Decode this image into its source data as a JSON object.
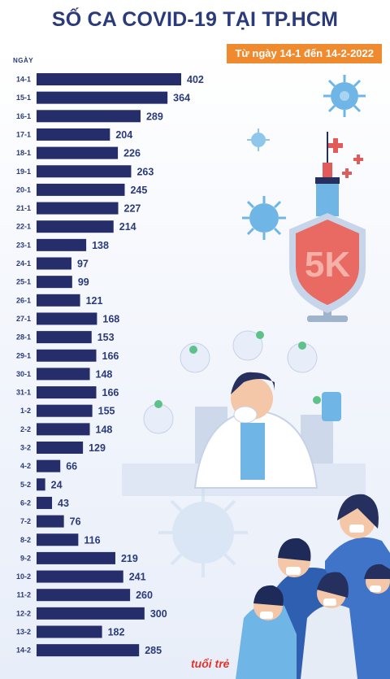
{
  "header": {
    "title": "SỐ CA COVID-19 TẠI TP.HCM",
    "subtitle": "Từ ngày 14-1 đến 14-2-2022"
  },
  "colors": {
    "bar": "#252e6b",
    "text": "#2a3a7a",
    "subtitle_bg": "#f08a2e",
    "accent_red": "#e25b5b",
    "virus": "#6fb6e6"
  },
  "illustration": {
    "shield_text": "5K",
    "logo_text": "tuổi trẻ"
  },
  "chart_data": {
    "type": "bar",
    "orientation": "horizontal",
    "title": "SỐ CA COVID-19 TẠI TP.HCM",
    "subtitle": "Từ ngày 14-1 đến 14-2-2022",
    "ylabel": "NGÀY",
    "xlabel": "",
    "xlim": [
      0,
      402
    ],
    "grid": false,
    "categories": [
      "14-1",
      "15-1",
      "16-1",
      "17-1",
      "18-1",
      "19-1",
      "20-1",
      "21-1",
      "22-1",
      "23-1",
      "24-1",
      "25-1",
      "26-1",
      "27-1",
      "28-1",
      "29-1",
      "30-1",
      "31-1",
      "1-2",
      "2-2",
      "3-2",
      "4-2",
      "5-2",
      "6-2",
      "7-2",
      "8-2",
      "9-2",
      "10-2",
      "11-2",
      "12-2",
      "13-2",
      "14-2"
    ],
    "values": [
      402,
      364,
      289,
      204,
      226,
      263,
      245,
      227,
      214,
      138,
      97,
      99,
      121,
      168,
      153,
      166,
      148,
      166,
      155,
      148,
      129,
      66,
      24,
      43,
      76,
      116,
      219,
      241,
      260,
      300,
      182,
      285
    ]
  }
}
